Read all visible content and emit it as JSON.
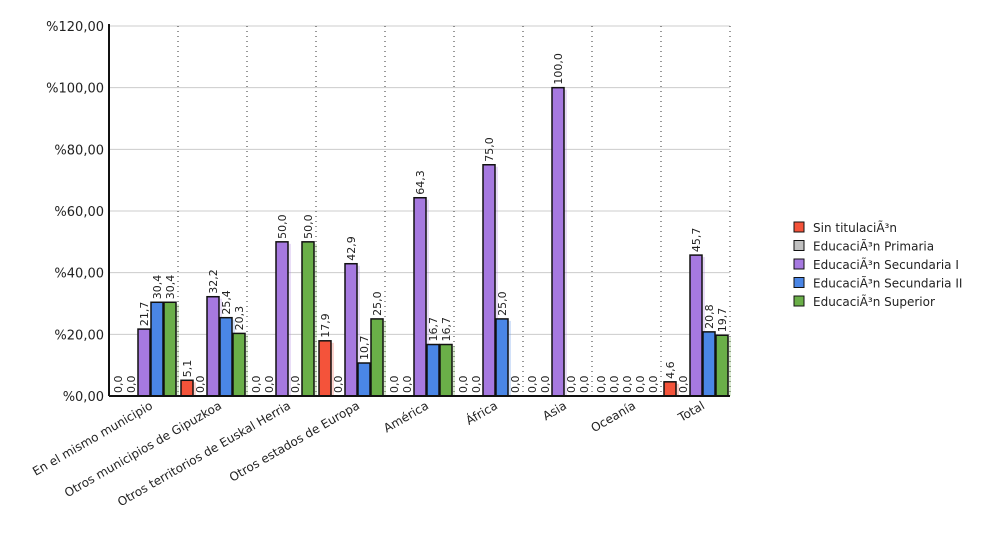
{
  "chart_data": {
    "type": "bar",
    "title": "",
    "xlabel": "",
    "ylabel": "",
    "ylim": [
      0,
      120
    ],
    "yticks": [
      "%0,00",
      "%20,00",
      "%40,00",
      "%60,00",
      "%80,00",
      "%100,00",
      "%120,00"
    ],
    "grid": true,
    "legend_placement": "right",
    "categories": [
      "En el mismo municipio",
      "Otros municipios de Gipuzkoa",
      "Otros territorios de Euskal Herria",
      "Otros estados de Europa",
      "América",
      "África",
      "Asia",
      "Oceanía",
      "Total"
    ],
    "series": [
      {
        "name": "Sin titulaciÃ³n",
        "color": "#f4533a",
        "values": [
          0,
          5.1,
          0,
          17.9,
          0,
          0,
          0,
          0,
          4.6
        ],
        "labels": [
          "0,0",
          "5,1",
          "0,0",
          "17,9",
          "0,0",
          "0,0",
          "0,0",
          "0,0",
          "4,6"
        ]
      },
      {
        "name": "EducaciÃ³n Primaria",
        "color": "#c0c0c0",
        "values": [
          0,
          0,
          0,
          0,
          0,
          0,
          0,
          0,
          0
        ],
        "labels": [
          "0,0",
          "0,0",
          "0,0",
          "0,0",
          "0,0",
          "0,0",
          "0,0",
          "0,0",
          "0,0"
        ]
      },
      {
        "name": "EducaciÃ³n Secundaria I",
        "color": "#a679e0",
        "values": [
          21.7,
          32.2,
          50,
          42.9,
          64.3,
          75,
          100,
          0,
          45.7
        ],
        "labels": [
          "21,7",
          "32,2",
          "50,0",
          "42,9",
          "64,3",
          "75,0",
          "100,0",
          "0,0",
          "45,7"
        ]
      },
      {
        "name": "EducaciÃ³n Secundaria II",
        "color": "#4a86e6",
        "values": [
          30.4,
          25.4,
          0,
          10.7,
          16.7,
          25,
          0,
          0,
          20.8
        ],
        "labels": [
          "30,4",
          "25,4",
          "0,0",
          "10,7",
          "16,7",
          "25,0",
          "0,0",
          "0,0",
          "20,8"
        ]
      },
      {
        "name": "EducaciÃ³n Superior",
        "color": "#6aaf48",
        "values": [
          30.4,
          20.3,
          50,
          25,
          16.7,
          0,
          0,
          0,
          19.7
        ],
        "labels": [
          "30,4",
          "20,3",
          "50,0",
          "25,0",
          "16,7",
          "0,0",
          "0,0",
          "0,0",
          "19,7"
        ]
      }
    ]
  }
}
